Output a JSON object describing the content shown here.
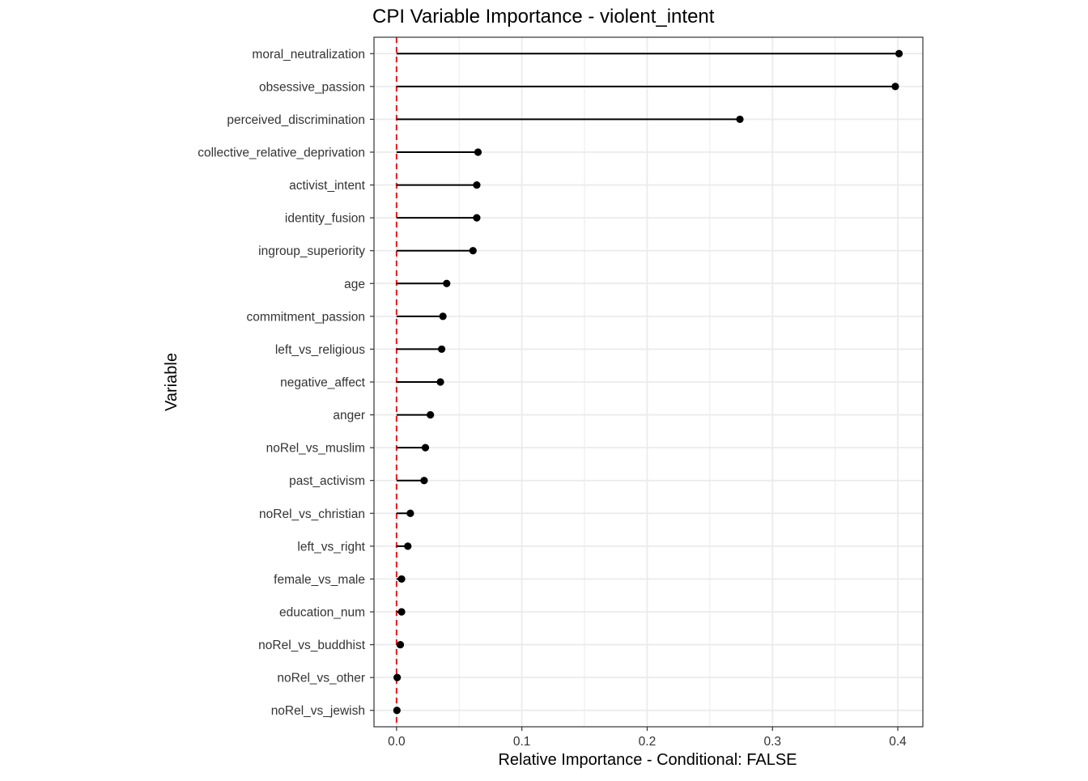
{
  "chart_data": {
    "type": "lollipop",
    "title": "CPI Variable Importance - violent_intent",
    "xlabel": "Relative Importance - Conditional: FALSE",
    "ylabel": "Variable",
    "xlim": [
      -0.018,
      0.42
    ],
    "x_ticks": [
      0.0,
      0.1,
      0.2,
      0.3,
      0.4
    ],
    "x_tick_labels": [
      "0.0",
      "0.1",
      "0.2",
      "0.3",
      "0.4"
    ],
    "reference_line": {
      "x": 0,
      "style": "dashed",
      "color": "#e41a1c"
    },
    "grid": true,
    "legend": "none",
    "categories": [
      "moral_neutralization",
      "obsessive_passion",
      "perceived_discrimination",
      "collective_relative_deprivation",
      "activist_intent",
      "identity_fusion",
      "ingroup_superiority",
      "age",
      "commitment_passion",
      "left_vs_religious",
      "negative_affect",
      "anger",
      "noRel_vs_muslim",
      "past_activism",
      "noRel_vs_christian",
      "left_vs_right",
      "female_vs_male",
      "education_num",
      "noRel_vs_buddhist",
      "noRel_vs_other",
      "noRel_vs_jewish"
    ],
    "values": [
      0.401,
      0.398,
      0.274,
      0.065,
      0.064,
      0.064,
      0.061,
      0.04,
      0.037,
      0.036,
      0.035,
      0.027,
      0.023,
      0.022,
      0.011,
      0.009,
      0.004,
      0.004,
      0.003,
      0.0005,
      0.0003
    ],
    "colors": {
      "line": "#000000",
      "point": "#000000",
      "grid": "#ebebeb",
      "border": "#333333",
      "reference": "#e41a1c"
    }
  }
}
